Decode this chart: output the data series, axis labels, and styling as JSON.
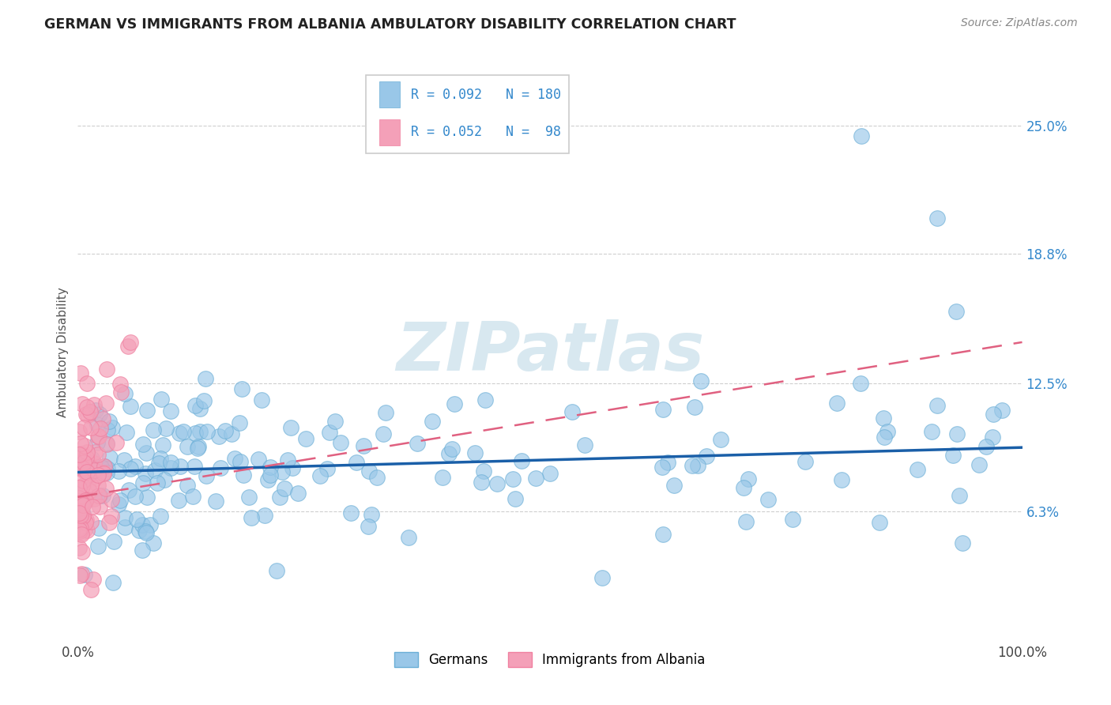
{
  "title": "GERMAN VS IMMIGRANTS FROM ALBANIA AMBULATORY DISABILITY CORRELATION CHART",
  "source": "Source: ZipAtlas.com",
  "ylabel": "Ambulatory Disability",
  "watermark": "ZIPatlas",
  "legend_german_R": "0.092",
  "legend_german_N": "180",
  "legend_albania_R": "0.052",
  "legend_albania_N": " 98",
  "xlim": [
    0.0,
    1.0
  ],
  "ylim": [
    0.0,
    0.28
  ],
  "yticks": [
    0.063,
    0.125,
    0.188,
    0.25
  ],
  "ytick_labels": [
    "6.3%",
    "12.5%",
    "18.8%",
    "25.0%"
  ],
  "xtick_labels": [
    "0.0%",
    "100.0%"
  ],
  "german_color": "#99c7e8",
  "albania_color": "#f4a0b8",
  "german_edge_color": "#6aaed6",
  "albania_edge_color": "#f080a0",
  "german_line_color": "#1a5fa8",
  "albania_line_color": "#e06080",
  "background_color": "#ffffff",
  "grid_color": "#bbbbbb",
  "title_color": "#222222",
  "legend_text_color": "#3388cc",
  "watermark_color": "#d8e8f0",
  "source_color": "#888888",
  "ylabel_color": "#555555"
}
